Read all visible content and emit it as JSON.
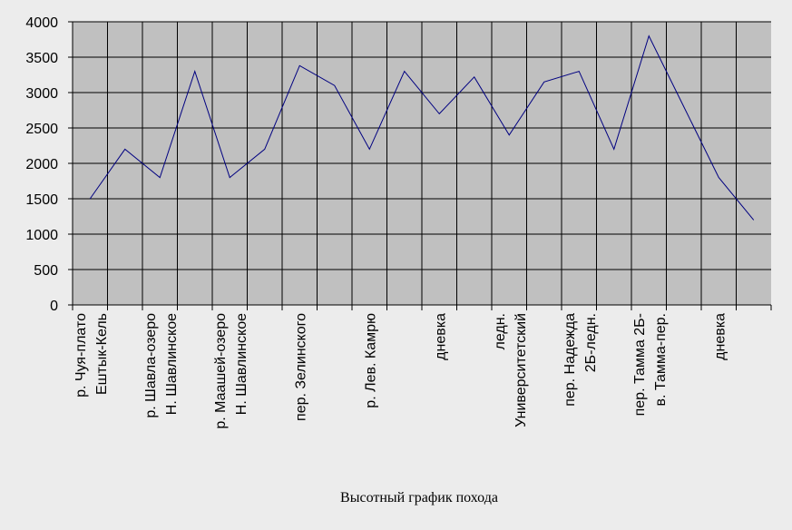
{
  "chart_data": {
    "type": "line",
    "title": "Высотный график похода",
    "categories": [
      [
        "р. Чуя-плато",
        "Ештык-Кель"
      ],
      null,
      [
        "р. Шавла-озеро",
        "Н. Шавлинское"
      ],
      null,
      [
        "р. Маашей-озеро",
        "Н. Шавлинское"
      ],
      null,
      [
        "пер. Зелинского"
      ],
      null,
      [
        "р. Лев. Камрю"
      ],
      null,
      [
        "дневка"
      ],
      null,
      [
        "ледн.",
        "Университетский"
      ],
      null,
      [
        "пер. Надежда",
        "2Б-ледн."
      ],
      null,
      [
        "пер. Тамма 2Б-",
        "в. Тамма-пер."
      ],
      null,
      [
        "дневка"
      ],
      null
    ],
    "values": [
      1500,
      2200,
      1800,
      3300,
      1800,
      2200,
      3380,
      3100,
      2200,
      3300,
      2700,
      3220,
      2400,
      3150,
      3300,
      2200,
      3800,
      2800,
      1800,
      1200
    ],
    "color": "#000080",
    "ylim": [
      0,
      4000
    ],
    "yticks": [
      0,
      500,
      1000,
      1500,
      2000,
      2500,
      3000,
      3500,
      4000
    ],
    "grid": true
  }
}
